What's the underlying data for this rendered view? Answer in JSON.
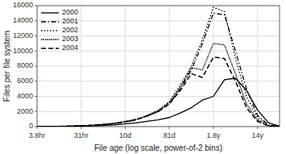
{
  "chart_data": {
    "type": "line",
    "xlabel": "File age (log scale, power-of-2 bins)",
    "ylabel": "Files per file system",
    "x": [
      0.0,
      0.25,
      0.5,
      0.75,
      1.0,
      1.25,
      1.5,
      1.75,
      2.0,
      2.25,
      2.5,
      2.75,
      3.0,
      3.25,
      3.5,
      3.75,
      4.0,
      4.25,
      4.5,
      4.75,
      5.0,
      5.25,
      5.5
    ],
    "xlim": [
      0,
      5.5
    ],
    "xticks": [
      {
        "value": 0,
        "label": "3.8hr"
      },
      {
        "value": 1,
        "label": "31hr"
      },
      {
        "value": 2,
        "label": "10d"
      },
      {
        "value": 3,
        "label": "81d"
      },
      {
        "value": 4,
        "label": "1.8y"
      },
      {
        "value": 5,
        "label": "14y"
      }
    ],
    "ylim": [
      0,
      16000
    ],
    "yticks": [
      0,
      2000,
      4000,
      6000,
      8000,
      10000,
      12000,
      14000,
      16000
    ],
    "grid": true,
    "legend": "upper-left",
    "series": [
      {
        "name": "2000",
        "color": "#000000",
        "line_style": "solid",
        "values": [
          5,
          10,
          20,
          40,
          70,
          100,
          150,
          220,
          350,
          500,
          700,
          900,
          1200,
          1800,
          2500,
          3500,
          4000,
          6200,
          6400,
          4800,
          2200,
          500,
          50
        ]
      },
      {
        "name": "2001",
        "color": "#000000",
        "line_style": "dashdot",
        "values": [
          5,
          15,
          30,
          60,
          100,
          160,
          260,
          380,
          600,
          900,
          1400,
          2000,
          3000,
          5000,
          7500,
          11000,
          15000,
          14800,
          10000,
          5000,
          1500,
          200,
          30
        ]
      },
      {
        "name": "2002",
        "color": "#000000",
        "line_style": "dotted",
        "values": [
          5,
          15,
          35,
          70,
          120,
          190,
          300,
          450,
          700,
          1000,
          1500,
          2200,
          3300,
          5500,
          8000,
          11500,
          15800,
          15200,
          9000,
          4000,
          1200,
          150,
          20
        ]
      },
      {
        "name": "2003",
        "color": "#000000",
        "line_style": "densely-dotted",
        "values": [
          5,
          15,
          30,
          65,
          110,
          175,
          275,
          410,
          650,
          950,
          1450,
          2100,
          3200,
          5200,
          7800,
          7500,
          11000,
          10800,
          7000,
          3000,
          900,
          100,
          15
        ]
      },
      {
        "name": "2004",
        "color": "#000000",
        "line_style": "dashed",
        "values": [
          5,
          15,
          30,
          65,
          110,
          175,
          270,
          400,
          630,
          920,
          1400,
          2000,
          3000,
          4800,
          7000,
          6500,
          9200,
          9000,
          6000,
          2500,
          700,
          80,
          10
        ]
      }
    ]
  }
}
